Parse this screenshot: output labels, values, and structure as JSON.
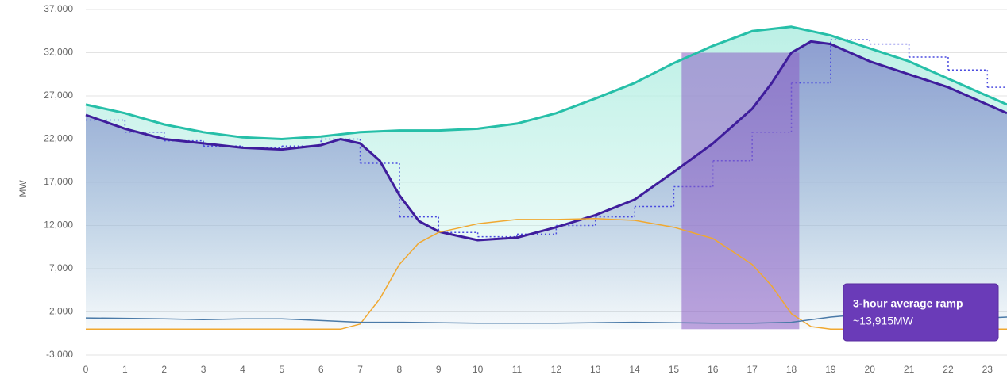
{
  "chart_data": {
    "type": "line",
    "ylabel": "MW",
    "xlim": [
      0,
      23.5
    ],
    "ylim": [
      -3000,
      37000
    ],
    "xticks": [
      0,
      1,
      2,
      3,
      4,
      5,
      6,
      7,
      8,
      9,
      10,
      11,
      12,
      13,
      14,
      15,
      16,
      17,
      18,
      19,
      20,
      21,
      22,
      23
    ],
    "yticks": [
      {
        "value": -3000,
        "label": "-3,000"
      },
      {
        "value": 2000,
        "label": "2,000"
      },
      {
        "value": 7000,
        "label": "7,000"
      },
      {
        "value": 12000,
        "label": "12,000"
      },
      {
        "value": 17000,
        "label": "17,000"
      },
      {
        "value": 22000,
        "label": "22,000"
      },
      {
        "value": 27000,
        "label": "27,000"
      },
      {
        "value": 32000,
        "label": "32,000"
      },
      {
        "value": 37000,
        "label": "37,000"
      }
    ],
    "grid": true,
    "ramp_band": [
      15.2,
      18.2
    ],
    "ramp_band_color": "#8c5cc4",
    "annotation": {
      "title": "3-hour average ramp",
      "text": "~13,915MW",
      "color": "#6a3bb8"
    },
    "series": [
      {
        "color": "#26bfa8",
        "area": true,
        "fill": "#b8efe4",
        "width": 3,
        "x": [
          0,
          1,
          2,
          3,
          4,
          5,
          6,
          7,
          8,
          9,
          10,
          11,
          12,
          13,
          14,
          15,
          16,
          17,
          18,
          19,
          20,
          21,
          22,
          23,
          23.5
        ],
        "values": [
          26000,
          25000,
          23700,
          22800,
          22200,
          22000,
          22300,
          22800,
          23000,
          23000,
          23200,
          23800,
          25000,
          26700,
          28500,
          30800,
          32800,
          34500,
          35000,
          34000,
          32500,
          31000,
          29000,
          27000,
          26000
        ]
      },
      {
        "color": "#3f1d9c",
        "area": true,
        "fill": "#8c9ad0",
        "width": 3,
        "x": [
          0,
          1,
          2,
          3,
          4,
          5,
          6,
          6.5,
          7,
          7.5,
          8,
          8.5,
          9,
          9.5,
          10,
          11,
          12,
          13,
          14,
          15,
          16,
          17,
          17.5,
          18,
          18.5,
          19,
          20,
          21,
          22,
          23,
          23.5
        ],
        "values": [
          24800,
          23200,
          22000,
          21500,
          21000,
          20800,
          21300,
          22000,
          21500,
          19500,
          15500,
          12500,
          11300,
          10800,
          10300,
          10600,
          11800,
          13200,
          15000,
          18200,
          21500,
          25500,
          28500,
          32000,
          33300,
          33000,
          31000,
          29500,
          28000,
          26000,
          25000
        ]
      },
      {
        "color": "#4a4adf",
        "step": true,
        "dash": "2 3",
        "width": 1.5,
        "x": [
          0,
          1,
          2,
          3,
          4,
          5,
          6,
          7,
          8,
          9,
          10,
          11,
          12,
          13,
          14,
          15,
          16,
          17,
          18,
          19,
          20,
          21,
          22,
          23
        ],
        "values": [
          24200,
          22800,
          21800,
          21200,
          21000,
          21200,
          22000,
          19200,
          13000,
          11200,
          10700,
          11000,
          12000,
          13000,
          14200,
          16500,
          19500,
          22800,
          28500,
          33500,
          33000,
          31500,
          30000,
          28000
        ]
      },
      {
        "color": "#f0a830",
        "width": 1.5,
        "x": [
          0,
          6.5,
          7,
          7.5,
          8,
          8.5,
          9,
          9.5,
          10,
          11,
          12,
          13,
          14,
          15,
          16,
          17,
          17.5,
          18,
          18.5,
          19,
          23.5
        ],
        "values": [
          0,
          0,
          600,
          3500,
          7500,
          10000,
          11200,
          11700,
          12200,
          12700,
          12700,
          12800,
          12600,
          11800,
          10500,
          7500,
          5000,
          1800,
          300,
          0,
          0
        ]
      },
      {
        "color": "#4a7aa8",
        "width": 1.5,
        "x": [
          0,
          2,
          3,
          4,
          5,
          6,
          7,
          8,
          10,
          12,
          14,
          16,
          17,
          18,
          19,
          20,
          21,
          22,
          23,
          23.5
        ],
        "values": [
          1300,
          1200,
          1100,
          1200,
          1200,
          1000,
          800,
          800,
          700,
          700,
          800,
          700,
          700,
          800,
          1400,
          1800,
          1500,
          1600,
          1300,
          1400
        ]
      }
    ]
  }
}
